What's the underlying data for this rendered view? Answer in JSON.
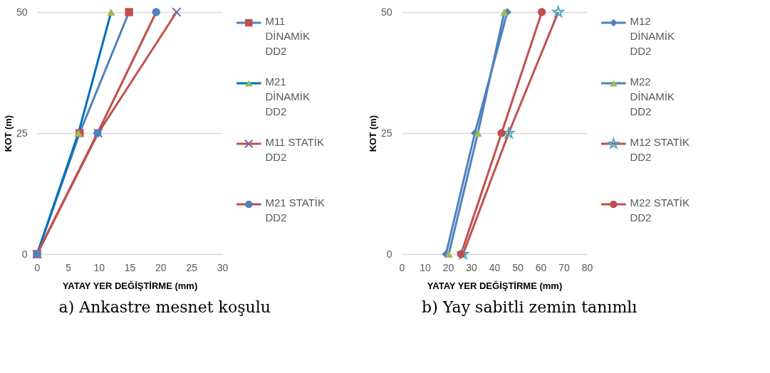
{
  "chart_data": [
    {
      "type": "line",
      "xlabel": "YATAY YER DEĞİŞTİRME  (mm)",
      "ylabel": "KOT (m)",
      "annotations": [
        "a) Ankastre mesnet koşulu"
      ],
      "xlim": [
        0,
        30
      ],
      "xticks": [
        0,
        5,
        10,
        15,
        20,
        25,
        30
      ],
      "ylim": [
        0,
        50
      ],
      "yticks": [
        0,
        25,
        50
      ],
      "grid": "y",
      "legend": "right",
      "series": [
        {
          "name": "M11 DİNAMİK DD2",
          "color": "#4f81bd",
          "marker": "square",
          "colors": [
            "#c0504d",
            "#c0504d",
            "#c0504d"
          ],
          "x": [
            0,
            6.9,
            14.9
          ],
          "values": [
            0,
            25,
            50
          ]
        },
        {
          "name": "M21 DİNAMİK DD2",
          "color": "#0070c0",
          "marker": "triangle",
          "colors": [
            "#9bbb59",
            "#9bbb59",
            "#9bbb59"
          ],
          "x": [
            0,
            6.7,
            12.0
          ],
          "values": [
            0,
            25,
            50
          ]
        },
        {
          "name": "M11 STATİK DD2",
          "color": "#c0504d",
          "marker": "cross",
          "colors": [
            "#8064a2",
            "#8064a2",
            "#8064a2"
          ],
          "x": [
            0,
            9.9,
            22.6
          ],
          "values": [
            0,
            25,
            50
          ]
        },
        {
          "name": "M21 STATİK DD2",
          "color": "#c0504d",
          "marker": "circle",
          "colors": [
            "#4f81bd",
            "#4f81bd",
            "#4f81bd"
          ],
          "x": [
            0,
            9.8,
            19.3
          ],
          "values": [
            0,
            25,
            50
          ]
        }
      ]
    },
    {
      "type": "line",
      "xlabel": "YATAY YER DEĞİŞTİRME  (mm)",
      "ylabel": "KOT (m)",
      "annotations": [
        "b) Yay sabitli zemin tanımlı"
      ],
      "xlim": [
        0,
        80
      ],
      "xticks": [
        0,
        10,
        20,
        30,
        40,
        50,
        60,
        70,
        80
      ],
      "ylim": [
        0,
        50
      ],
      "yticks": [
        0,
        25,
        50
      ],
      "grid": "y",
      "legend": "right",
      "series": [
        {
          "name": "M12 DİNAMİK DD2",
          "color": "#4f81bd",
          "marker": "diamond",
          "colors": [
            "#4f81bd",
            "#4f81bd",
            "#4f81bd"
          ],
          "x": [
            19.1,
            31.6,
            45.6
          ],
          "values": [
            0,
            25,
            50
          ]
        },
        {
          "name": "M22 DİNAMİK DD2",
          "color": "#4f81bd",
          "marker": "triangle",
          "colors": [
            "#9bbb59",
            "#9bbb59",
            "#9bbb59"
          ],
          "x": [
            20.3,
            32.9,
            44.3
          ],
          "values": [
            0,
            25,
            50
          ]
        },
        {
          "name": "M12 STATİK DD2",
          "color": "#c0504d",
          "marker": "star",
          "colors": [
            "#4bacc6",
            "#4bacc6",
            "#4bacc6"
          ],
          "x": [
            26.5,
            46.2,
            67.6
          ],
          "values": [
            0,
            25,
            50
          ]
        },
        {
          "name": "M22 STATİK DD2",
          "color": "#c0504d",
          "marker": "circle",
          "colors": [
            "#c0504d",
            "#c0504d",
            "#c0504d"
          ],
          "x": [
            25.6,
            43.1,
            60.5
          ],
          "values": [
            0,
            25,
            50
          ]
        }
      ]
    }
  ]
}
